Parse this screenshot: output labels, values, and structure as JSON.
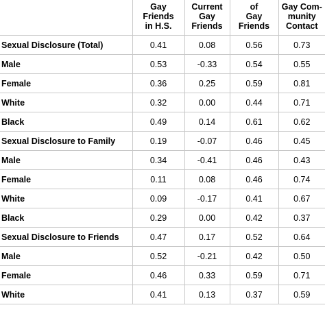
{
  "columns": [
    {
      "lines": [
        "Gay",
        "Friends",
        "in H.S."
      ]
    },
    {
      "lines": [
        "Current",
        "Gay",
        "Friends"
      ]
    },
    {
      "lines": [
        "of",
        "Gay",
        "Friends"
      ]
    },
    {
      "lines": [
        "Gay Com-",
        "munity",
        "Contact"
      ]
    }
  ],
  "rows": [
    {
      "label": "Sexual Disclosure (Total)",
      "values": [
        "0.41",
        "0.08",
        "0.56",
        "0.73"
      ]
    },
    {
      "label": "Male",
      "values": [
        "0.53",
        "-0.33",
        "0.54",
        "0.55"
      ]
    },
    {
      "label": "Female",
      "values": [
        "0.36",
        "0.25",
        "0.59",
        "0.81"
      ]
    },
    {
      "label": "White",
      "values": [
        "0.32",
        "0.00",
        "0.44",
        "0.71"
      ]
    },
    {
      "label": "Black",
      "values": [
        "0.49",
        "0.14",
        "0.61",
        "0.62"
      ]
    },
    {
      "label": "Sexual Disclosure to Family",
      "values": [
        "0.19",
        "-0.07",
        "0.46",
        "0.45"
      ]
    },
    {
      "label": "Male",
      "values": [
        "0.34",
        "-0.41",
        "0.46",
        "0.43"
      ]
    },
    {
      "label": "Female",
      "values": [
        "0.11",
        "0.08",
        "0.46",
        "0.74"
      ]
    },
    {
      "label": "White",
      "values": [
        "0.09",
        "-0.17",
        "0.41",
        "0.67"
      ]
    },
    {
      "label": "Black",
      "values": [
        "0.29",
        "0.00",
        "0.42",
        "0.37"
      ]
    },
    {
      "label": "Sexual Disclosure to Friends",
      "values": [
        "0.47",
        "0.17",
        "0.52",
        "0.64"
      ]
    },
    {
      "label": "Male",
      "values": [
        "0.52",
        "-0.21",
        "0.42",
        "0.50"
      ]
    },
    {
      "label": "Female",
      "values": [
        "0.46",
        "0.33",
        "0.59",
        "0.71"
      ]
    },
    {
      "label": "White",
      "values": [
        "0.41",
        "0.13",
        "0.37",
        "0.59"
      ]
    }
  ],
  "colors": {
    "grid": "#c8c8c8",
    "text": "#000000",
    "background": "#ffffff"
  }
}
